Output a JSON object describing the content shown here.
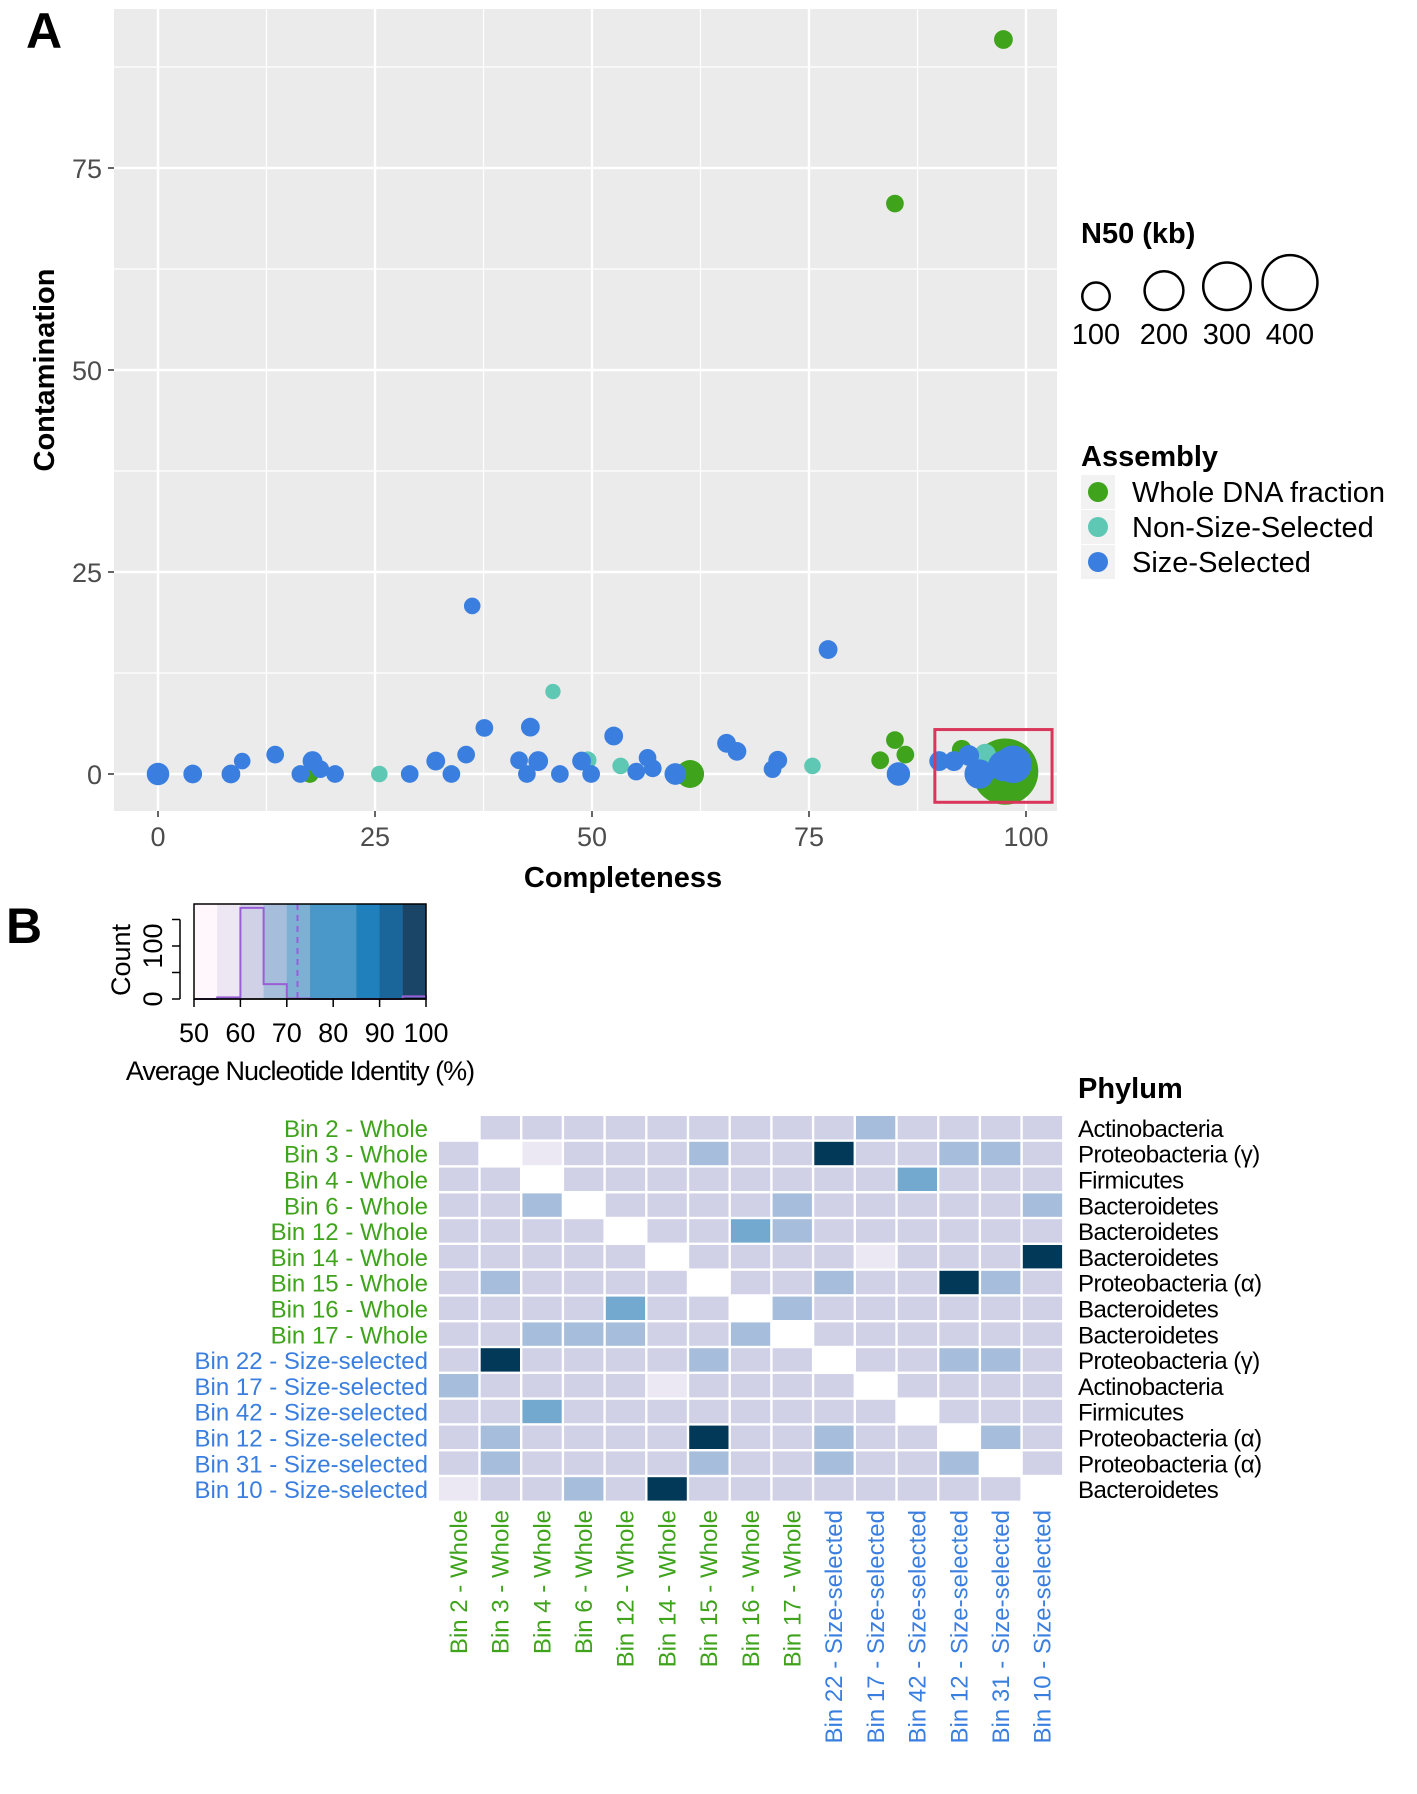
{
  "panels": {
    "a": "A",
    "b": "B"
  },
  "colors": {
    "whole": "#3fa31c",
    "non_size_selected": "#5ec8b4",
    "size_selected": "#3a7fe0",
    "highlight_box": "#d9365a",
    "panel_bg": "#ebebeb"
  },
  "chart_data": [
    {
      "type": "scatter",
      "title": "",
      "xlabel": "Completeness",
      "ylabel": "Contamination",
      "xlim": [
        -5,
        105
      ],
      "ylim": [
        -9,
        95
      ],
      "xticks": [
        "0",
        "25",
        "50",
        "75",
        "100"
      ],
      "yticks": [
        "0",
        "25",
        "50",
        "75"
      ],
      "grid": true,
      "size_legend": {
        "title": "N50 (kb)",
        "values": [
          "100",
          "200",
          "300",
          "400"
        ]
      },
      "color_legend": {
        "title": "Assembly",
        "entries": [
          "Whole DNA fraction",
          "Non-Size-Selected",
          "Size-Selected"
        ]
      },
      "legend_position": "right",
      "highlight_region": {
        "x": [
          89.5,
          103
        ],
        "y": [
          -3.5,
          5.5
        ]
      },
      "series": [
        {
          "name": "Whole DNA fraction",
          "points": [
            [
              97.4,
              90.9,
              45
            ],
            [
              84.9,
              70.6,
              40
            ],
            [
              83.2,
              1.7,
              40
            ],
            [
              84.9,
              4.2,
              40
            ],
            [
              86.1,
              2.4,
              40
            ],
            [
              61.3,
              0,
              100
            ],
            [
              17.5,
              0,
              40
            ],
            [
              92.6,
              3,
              50
            ],
            [
              97.6,
              0.3,
              560
            ]
          ]
        },
        {
          "name": "Non-Size-Selected",
          "points": [
            [
              45.5,
              10.2,
              30
            ],
            [
              49.5,
              1.7,
              40
            ],
            [
              53.3,
              1,
              35
            ],
            [
              75.4,
              1,
              35
            ],
            [
              25.5,
              0,
              35
            ],
            [
              95.3,
              2.4,
              60
            ]
          ]
        },
        {
          "name": "Size-Selected",
          "points": [
            [
              36.2,
              20.8,
              35
            ],
            [
              77.2,
              15.4,
              45
            ],
            [
              0,
              0,
              65
            ],
            [
              4,
              0,
              45
            ],
            [
              8.4,
              0,
              45
            ],
            [
              9.7,
              1.6,
              35
            ],
            [
              13.5,
              2.4,
              40
            ],
            [
              16.4,
              0,
              40
            ],
            [
              17.8,
              1.6,
              50
            ],
            [
              18.7,
              0.6,
              40
            ],
            [
              20.4,
              0,
              40
            ],
            [
              29,
              0,
              40
            ],
            [
              32,
              1.6,
              45
            ],
            [
              33.8,
              0,
              40
            ],
            [
              35.5,
              2.4,
              40
            ],
            [
              37.6,
              5.7,
              40
            ],
            [
              41.6,
              1.7,
              40
            ],
            [
              42.5,
              0,
              40
            ],
            [
              42.9,
              5.8,
              45
            ],
            [
              43.8,
              1.6,
              50
            ],
            [
              46.3,
              0,
              40
            ],
            [
              48.8,
              1.6,
              45
            ],
            [
              49.9,
              0,
              40
            ],
            [
              52.5,
              4.7,
              45
            ],
            [
              55.1,
              0.3,
              40
            ],
            [
              56.4,
              2,
              40
            ],
            [
              57,
              0.7,
              40
            ],
            [
              59.6,
              0,
              60
            ],
            [
              65.5,
              3.8,
              45
            ],
            [
              66.7,
              2.8,
              45
            ],
            [
              70.8,
              0.6,
              40
            ],
            [
              71.4,
              1.7,
              45
            ],
            [
              85.3,
              0,
              70
            ],
            [
              90,
              1.6,
              50
            ],
            [
              91.7,
              1.6,
              50
            ],
            [
              93.4,
              2.3,
              55
            ],
            [
              94.6,
              0,
              110
            ],
            [
              97.4,
              1,
              120
            ],
            [
              98.5,
              1.2,
              180
            ]
          ]
        }
      ]
    },
    {
      "type": "bar",
      "title": "",
      "xlabel": "Average Nucleotide Identity (%)",
      "ylabel": "Count",
      "xlim": [
        50,
        100
      ],
      "ylim": [
        0,
        180
      ],
      "xticks": [
        "50",
        "60",
        "70",
        "80",
        "90",
        "100"
      ],
      "yticks": [
        "0",
        "100"
      ],
      "bins": [
        [
          50,
          55,
          0
        ],
        [
          55,
          60,
          3
        ],
        [
          60,
          65,
          172
        ],
        [
          65,
          70,
          28
        ],
        [
          70,
          75,
          1
        ],
        [
          75,
          80,
          0
        ],
        [
          80,
          85,
          0
        ],
        [
          85,
          90,
          0
        ],
        [
          90,
          95,
          0
        ],
        [
          95,
          100,
          5
        ]
      ],
      "mean_line": 72.3,
      "color_bands": [
        [
          50,
          55,
          "#fff7fb"
        ],
        [
          55,
          60,
          "#ece7f2"
        ],
        [
          60,
          65,
          "#d0d1e6"
        ],
        [
          65,
          70,
          "#a6bddb"
        ],
        [
          70,
          75,
          "#7db0d2"
        ],
        [
          75,
          85,
          "#4a98c9"
        ],
        [
          85,
          90,
          "#1f80bb"
        ],
        [
          90,
          95,
          "#1a669a"
        ],
        [
          95,
          100,
          "#1a4566"
        ]
      ]
    },
    {
      "type": "heatmap",
      "title": "",
      "annotation_title": "Phylum",
      "rows": [
        "Bin 2 - Whole",
        "Bin 3 - Whole",
        "Bin 4 - Whole",
        "Bin 6 - Whole",
        "Bin 12 - Whole",
        "Bin 14 - Whole",
        "Bin 15 - Whole",
        "Bin 16 - Whole",
        "Bin 17 - Whole",
        "Bin 22 - Size-selected",
        "Bin 17 - Size-selected",
        "Bin 42 - Size-selected",
        "Bin 12 - Size-selected",
        "Bin 31 - Size-selected",
        "Bin 10 - Size-selected"
      ],
      "row_groups": [
        "whole",
        "whole",
        "whole",
        "whole",
        "whole",
        "whole",
        "whole",
        "whole",
        "whole",
        "size",
        "size",
        "size",
        "size",
        "size",
        "size"
      ],
      "phylum": [
        "Actinobacteria",
        "Proteobacteria (γ)",
        "Firmicutes",
        "Bacteroidetes",
        "Bacteroidetes",
        "Bacteroidetes",
        "Proteobacteria (α)",
        "Bacteroidetes",
        "Bacteroidetes",
        "Proteobacteria (γ)",
        "Actinobacteria",
        "Firmicutes",
        "Proteobacteria (α)",
        "Proteobacteria (α)",
        "Bacteroidetes"
      ],
      "level_ani": [
        null,
        57,
        62,
        67,
        72,
        98
      ],
      "level_colors": [
        "#ffffff",
        "#ece8f3",
        "#d0d1e6",
        "#a6bddb",
        "#74a9cf",
        "#023858"
      ],
      "matrix_levels": [
        [
          0,
          2,
          2,
          2,
          2,
          2,
          2,
          2,
          2,
          2,
          3,
          2,
          2,
          2,
          2
        ],
        [
          2,
          0,
          1,
          2,
          2,
          2,
          3,
          2,
          2,
          5,
          2,
          2,
          3,
          3,
          2
        ],
        [
          2,
          2,
          0,
          2,
          2,
          2,
          2,
          2,
          2,
          2,
          2,
          4,
          2,
          2,
          2
        ],
        [
          2,
          2,
          3,
          0,
          2,
          2,
          2,
          2,
          3,
          2,
          2,
          2,
          2,
          2,
          3
        ],
        [
          2,
          2,
          2,
          2,
          0,
          2,
          2,
          4,
          3,
          2,
          2,
          2,
          2,
          2,
          2
        ],
        [
          2,
          2,
          2,
          2,
          2,
          0,
          2,
          2,
          2,
          2,
          1,
          2,
          2,
          2,
          5
        ],
        [
          2,
          3,
          2,
          2,
          2,
          2,
          0,
          2,
          2,
          3,
          2,
          2,
          5,
          3,
          2
        ],
        [
          2,
          2,
          2,
          2,
          4,
          2,
          2,
          0,
          3,
          2,
          2,
          2,
          2,
          2,
          2
        ],
        [
          2,
          2,
          3,
          3,
          3,
          2,
          2,
          3,
          0,
          2,
          2,
          2,
          2,
          2,
          2
        ],
        [
          2,
          5,
          2,
          2,
          2,
          2,
          3,
          2,
          2,
          0,
          2,
          2,
          3,
          3,
          2
        ],
        [
          3,
          2,
          2,
          2,
          2,
          1,
          2,
          2,
          2,
          2,
          0,
          2,
          2,
          2,
          2
        ],
        [
          2,
          2,
          4,
          2,
          2,
          2,
          2,
          2,
          2,
          2,
          2,
          0,
          2,
          2,
          2
        ],
        [
          2,
          3,
          2,
          2,
          2,
          2,
          5,
          2,
          2,
          3,
          2,
          2,
          0,
          3,
          2
        ],
        [
          2,
          3,
          2,
          2,
          2,
          2,
          3,
          2,
          2,
          3,
          2,
          2,
          3,
          0,
          2
        ],
        [
          1,
          2,
          2,
          3,
          2,
          5,
          2,
          2,
          2,
          2,
          2,
          2,
          2,
          2,
          0
        ]
      ]
    }
  ]
}
